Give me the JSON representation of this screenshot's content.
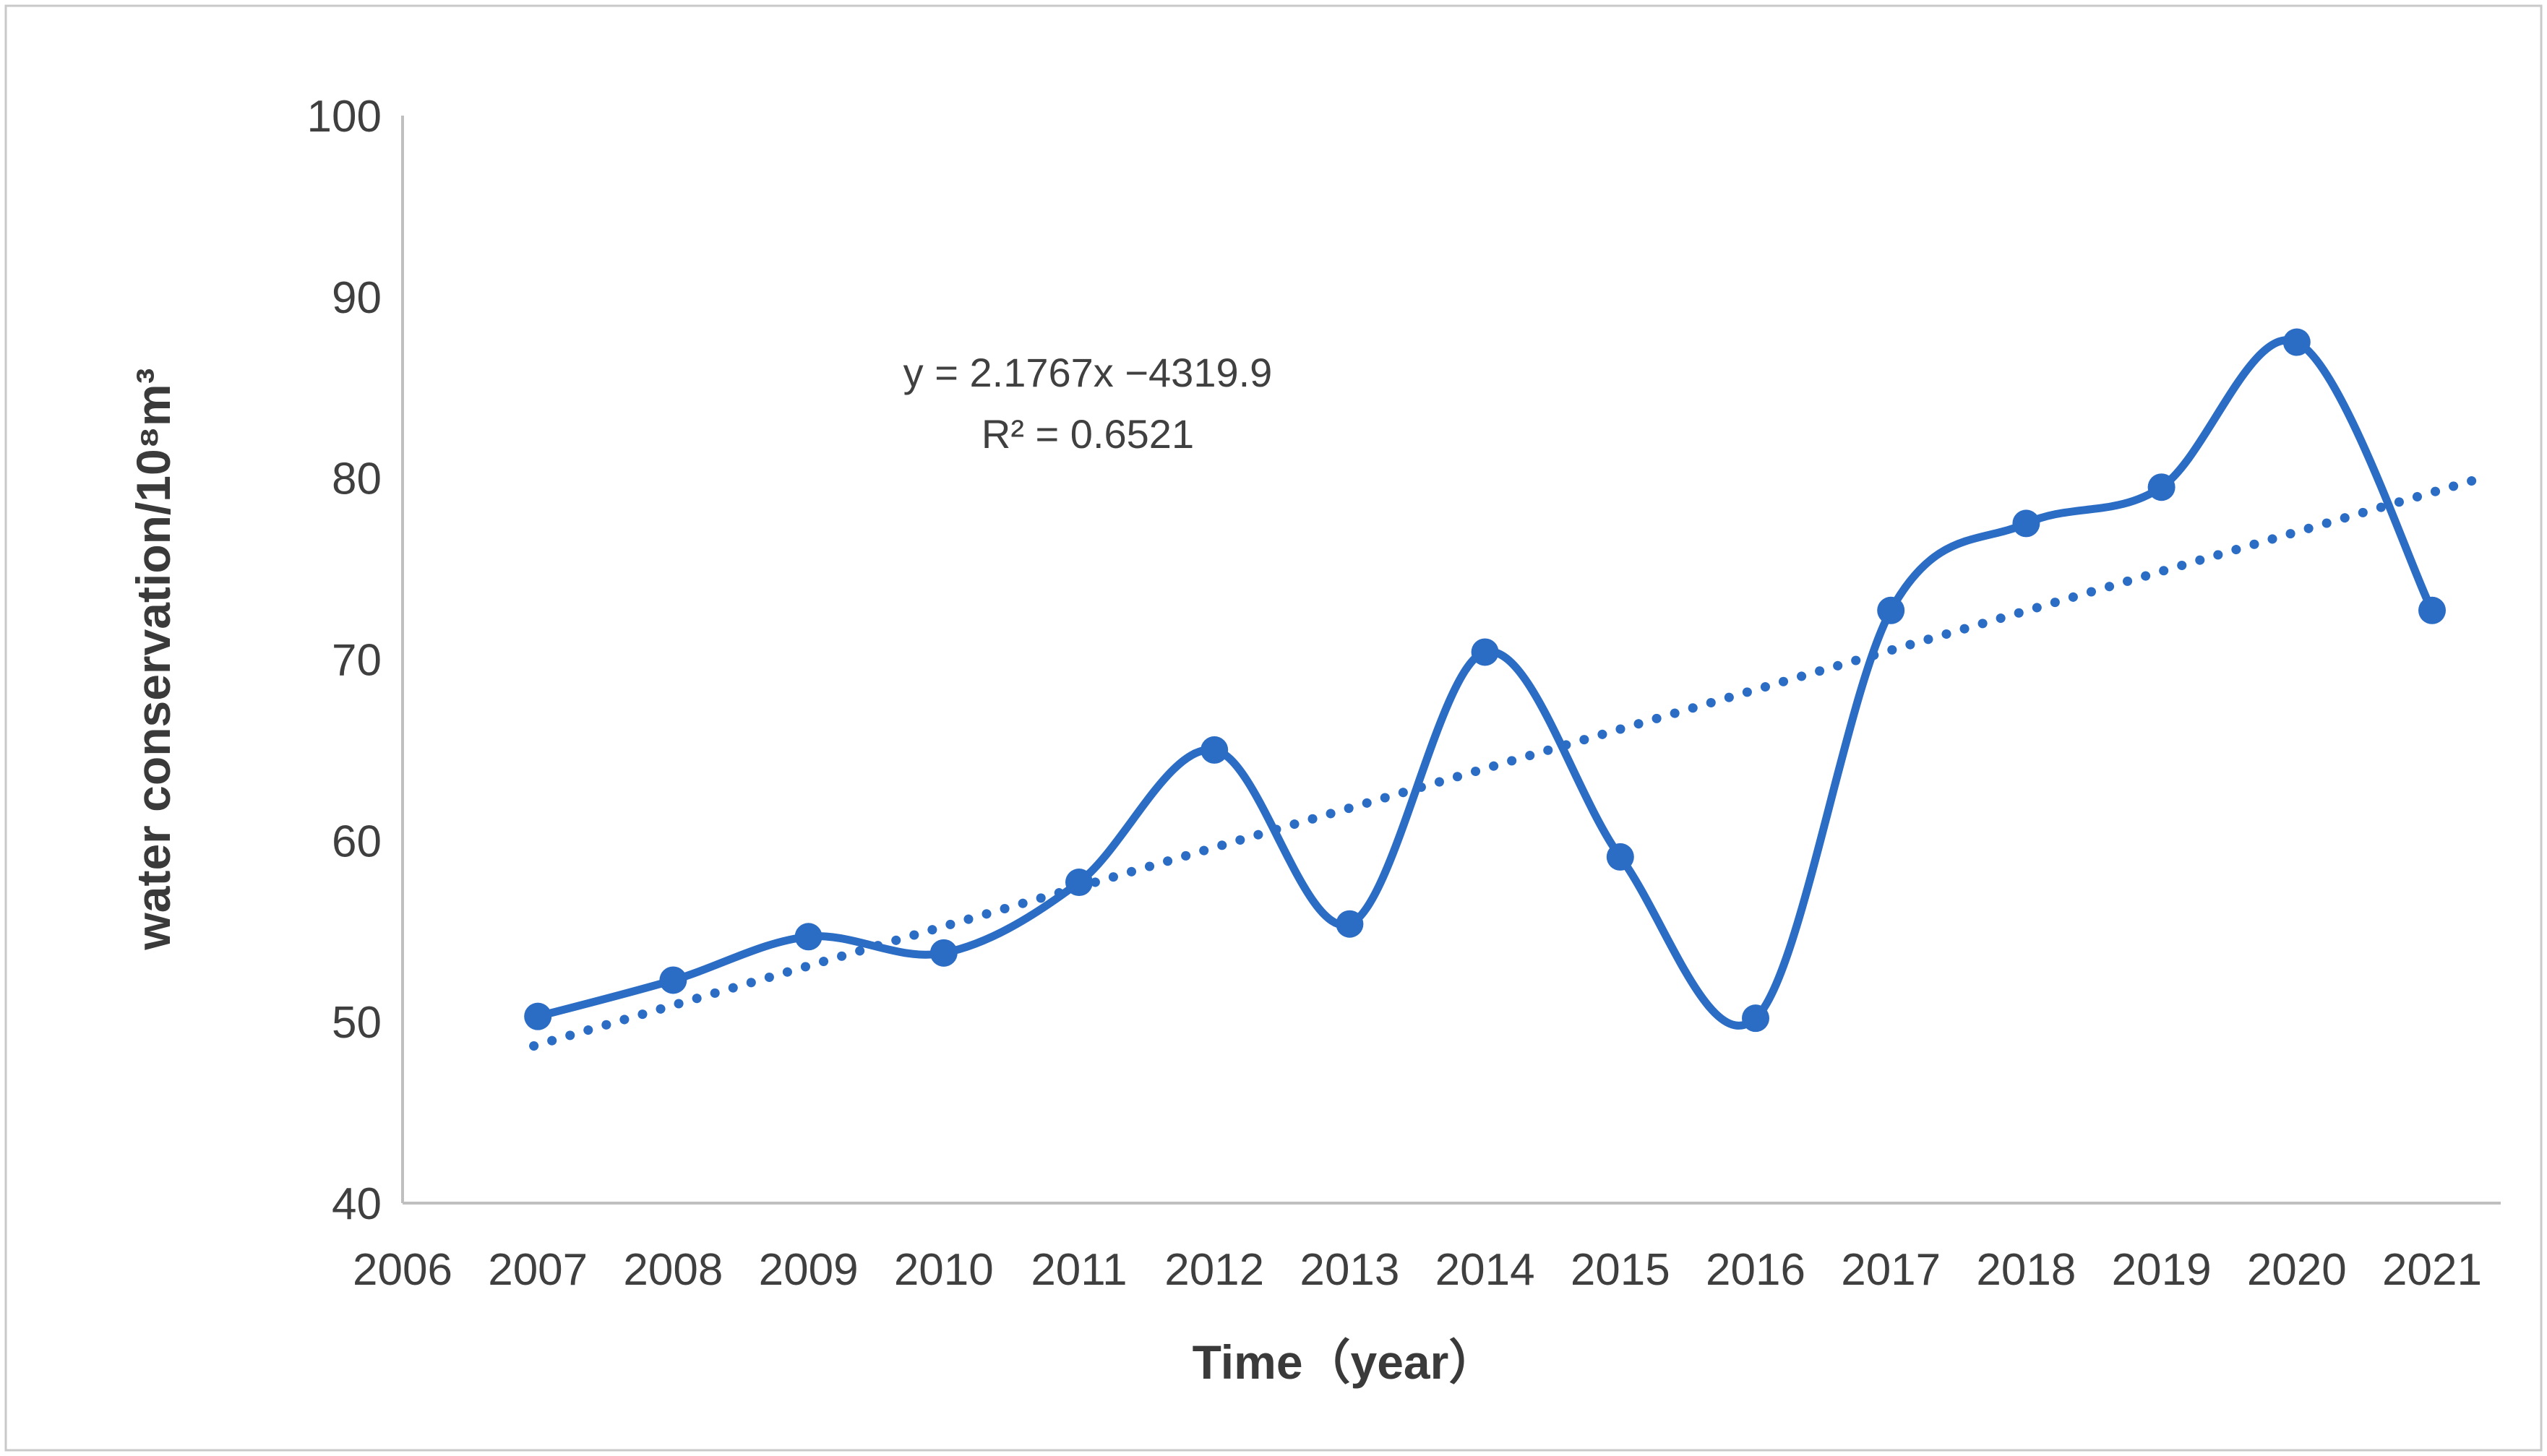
{
  "figure": {
    "background": "#ffffff",
    "border_color": "#c9c9c9"
  },
  "colors": {
    "series_blue": "#2b6cc4",
    "axis_gray": "#bfbfbf",
    "text_gray": "#3f3f3f"
  },
  "y_axis": {
    "title": "water conservation/10⁸m³",
    "ticks": [
      100,
      90,
      80,
      70,
      60,
      50,
      40
    ],
    "min": 40,
    "max": 100
  },
  "x_axis": {
    "title": "Time（year）",
    "ticks": [
      2006,
      2007,
      2008,
      2009,
      2010,
      2011,
      2012,
      2013,
      2014,
      2015,
      2016,
      2017,
      2018,
      2019,
      2020,
      2021
    ]
  },
  "annotation": {
    "equation": "y = 2.1767x −4319.9",
    "r_squared": "R² = 0.6521"
  },
  "chart_data": {
    "type": "line",
    "smooth": true,
    "marker": "circle",
    "grid": false,
    "legend": false,
    "title": "",
    "xlabel": "Time（year）",
    "ylabel": "water conservation/10⁸m³",
    "xlim": [
      2006,
      2021.5
    ],
    "ylim": [
      40,
      100
    ],
    "x": [
      2007,
      2008,
      2009,
      2010,
      2011,
      2012,
      2013,
      2014,
      2015,
      2016,
      2017,
      2018,
      2019,
      2020,
      2021
    ],
    "series": [
      {
        "name": "water conservation",
        "values": [
          50.3,
          52.3,
          54.7,
          53.8,
          57.7,
          65.0,
          55.4,
          70.4,
          59.1,
          50.2,
          72.7,
          77.5,
          79.5,
          87.5,
          72.7
        ]
      }
    ],
    "trendline": {
      "style": "dotted",
      "slope": 2.1767,
      "intercept": -4319.9,
      "r2": 0.6521,
      "x_start": 2006.97,
      "x_end": 2021.3
    }
  }
}
